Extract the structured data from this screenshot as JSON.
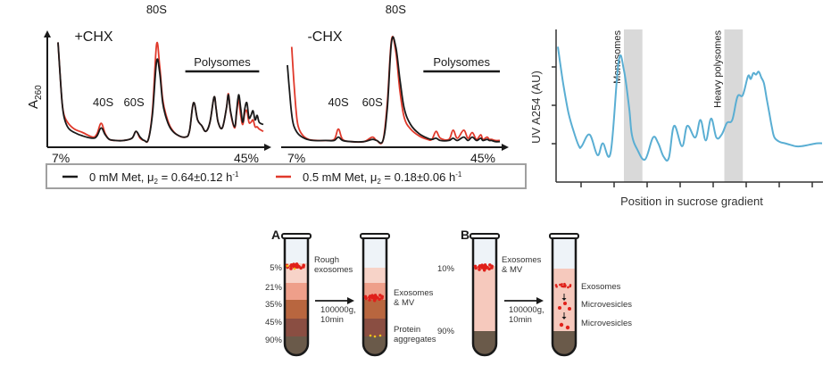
{
  "colors": {
    "black_series": "#1a1a1a",
    "red_series": "#e0392b",
    "blue_series": "#5aaed3",
    "shade": "#d9d9d9",
    "legend_border": "#a0a0a0",
    "tube_outline": "#1a1a1a",
    "layer_5": "#f7d3c8",
    "layer_21": "#ee9f8a",
    "layer_35": "#b8663f",
    "layer_45": "#8a4e42",
    "layer_90": "#6a5a4a",
    "layer_10_to_90": "#f6c9bd",
    "tube_top": "#eef3f8",
    "particle_red": "#e0201a",
    "particle_yellow": "#f3c21b"
  },
  "chart_data": [
    {
      "type": "line",
      "title": "+CHX",
      "ylabel": "A260",
      "ylabel_main": "A",
      "ylabel_sub": "260",
      "xlabel_left": "7%",
      "xlabel_right": "45%",
      "annotations": [
        {
          "text": "40S",
          "x": 0.22
        },
        {
          "text": "60S",
          "x": 0.37
        },
        {
          "text": "80S",
          "x": 0.48
        },
        {
          "text": "Polysomes",
          "x_start": 0.62,
          "x_end": 0.98
        }
      ],
      "ylim": [
        0,
        1
      ],
      "xlim": [
        0,
        1
      ],
      "series": [
        {
          "name": "0 mM Met",
          "color_key": "black_series",
          "x": [
            0.0,
            0.01,
            0.02,
            0.03,
            0.05,
            0.08,
            0.12,
            0.17,
            0.19,
            0.21,
            0.23,
            0.25,
            0.28,
            0.32,
            0.36,
            0.38,
            0.4,
            0.42,
            0.44,
            0.46,
            0.48,
            0.495,
            0.51,
            0.53,
            0.55,
            0.58,
            0.62,
            0.64,
            0.66,
            0.68,
            0.7,
            0.72,
            0.74,
            0.76,
            0.77,
            0.78,
            0.8,
            0.82,
            0.83,
            0.84,
            0.86,
            0.87,
            0.88,
            0.89,
            0.9,
            0.91,
            0.92,
            0.93,
            0.94,
            0.95,
            0.96,
            0.97,
            0.98,
            1.0
          ],
          "y": [
            0.88,
            0.6,
            0.35,
            0.22,
            0.13,
            0.09,
            0.06,
            0.04,
            0.06,
            0.13,
            0.07,
            0.03,
            0.02,
            0.02,
            0.04,
            0.1,
            0.05,
            0.02,
            0.03,
            0.25,
            0.71,
            0.62,
            0.35,
            0.2,
            0.12,
            0.07,
            0.05,
            0.1,
            0.35,
            0.2,
            0.15,
            0.1,
            0.18,
            0.4,
            0.3,
            0.18,
            0.13,
            0.3,
            0.42,
            0.28,
            0.14,
            0.28,
            0.42,
            0.3,
            0.18,
            0.3,
            0.35,
            0.22,
            0.24,
            0.28,
            0.2,
            0.24,
            0.18,
            0.16
          ]
        },
        {
          "name": "0.5 mM Met",
          "color_key": "red_series",
          "x": [
            0.0,
            0.01,
            0.02,
            0.03,
            0.05,
            0.08,
            0.12,
            0.17,
            0.19,
            0.21,
            0.23,
            0.25,
            0.28,
            0.32,
            0.36,
            0.38,
            0.4,
            0.42,
            0.44,
            0.46,
            0.48,
            0.495,
            0.51,
            0.53,
            0.55,
            0.58,
            0.62,
            0.64,
            0.66,
            0.68,
            0.7,
            0.72,
            0.74,
            0.76,
            0.77,
            0.78,
            0.8,
            0.82,
            0.83,
            0.84,
            0.86,
            0.87,
            0.88,
            0.89,
            0.9,
            0.91,
            0.92,
            0.93,
            0.94,
            0.95,
            0.96,
            0.97,
            0.98,
            1.0
          ],
          "y": [
            0.88,
            0.6,
            0.35,
            0.24,
            0.17,
            0.12,
            0.09,
            0.05,
            0.08,
            0.17,
            0.08,
            0.03,
            0.02,
            0.02,
            0.04,
            0.1,
            0.04,
            0.02,
            0.03,
            0.28,
            0.86,
            0.68,
            0.38,
            0.22,
            0.13,
            0.07,
            0.05,
            0.1,
            0.35,
            0.2,
            0.15,
            0.1,
            0.18,
            0.4,
            0.3,
            0.18,
            0.13,
            0.3,
            0.43,
            0.27,
            0.13,
            0.26,
            0.38,
            0.24,
            0.16,
            0.26,
            0.28,
            0.18,
            0.18,
            0.2,
            0.14,
            0.14,
            0.12,
            0.1
          ]
        }
      ]
    },
    {
      "type": "line",
      "title": "-CHX",
      "xlabel_left": "7%",
      "xlabel_right": "45%",
      "annotations": [
        {
          "text": "40S",
          "x": 0.24
        },
        {
          "text": "60S",
          "x": 0.4
        },
        {
          "text": "80S",
          "x": 0.51
        },
        {
          "text": "Polysomes",
          "x_start": 0.64,
          "x_end": 1.0
        }
      ],
      "ylim": [
        0,
        1
      ],
      "xlim": [
        0,
        1
      ],
      "series": [
        {
          "name": "0 mM Met",
          "color_key": "black_series",
          "x": [
            0.0,
            0.01,
            0.02,
            0.03,
            0.05,
            0.08,
            0.12,
            0.18,
            0.22,
            0.24,
            0.26,
            0.3,
            0.36,
            0.4,
            0.42,
            0.45,
            0.47,
            0.49,
            0.51,
            0.53,
            0.55,
            0.58,
            0.62,
            0.66,
            0.68,
            0.7,
            0.72,
            0.76,
            0.78,
            0.8,
            0.83,
            0.85,
            0.87,
            0.89,
            0.91,
            0.92,
            0.94,
            0.95,
            0.96,
            0.98,
            1.0
          ],
          "y": [
            0.68,
            0.45,
            0.25,
            0.15,
            0.08,
            0.04,
            0.02,
            0.02,
            0.02,
            0.05,
            0.02,
            0.01,
            0.01,
            0.03,
            0.02,
            0.02,
            0.3,
            0.88,
            0.84,
            0.55,
            0.3,
            0.16,
            0.08,
            0.04,
            0.03,
            0.04,
            0.02,
            0.02,
            0.04,
            0.02,
            0.05,
            0.02,
            0.05,
            0.02,
            0.04,
            0.02,
            0.03,
            0.02,
            0.02,
            0.01,
            0.01
          ]
        },
        {
          "name": "0.5 mM Met",
          "color_key": "red_series",
          "x": [
            0.02,
            0.03,
            0.04,
            0.05,
            0.07,
            0.1,
            0.14,
            0.18,
            0.22,
            0.24,
            0.26,
            0.3,
            0.36,
            0.4,
            0.42,
            0.45,
            0.47,
            0.49,
            0.51,
            0.53,
            0.55,
            0.58,
            0.62,
            0.66,
            0.68,
            0.7,
            0.72,
            0.76,
            0.78,
            0.8,
            0.83,
            0.85,
            0.87,
            0.89,
            0.91,
            0.92,
            0.94,
            0.95,
            0.96,
            0.98,
            1.0
          ],
          "y": [
            0.84,
            0.55,
            0.3,
            0.15,
            0.07,
            0.03,
            0.02,
            0.02,
            0.03,
            0.12,
            0.03,
            0.01,
            0.01,
            0.05,
            0.02,
            0.02,
            0.35,
            0.9,
            0.8,
            0.45,
            0.22,
            0.12,
            0.06,
            0.03,
            0.03,
            0.1,
            0.04,
            0.03,
            0.11,
            0.04,
            0.11,
            0.04,
            0.09,
            0.03,
            0.07,
            0.03,
            0.05,
            0.03,
            0.03,
            0.02,
            0.02
          ]
        }
      ]
    },
    {
      "type": "line",
      "xlabel": "Position in sucrose gradient",
      "ylabel": "UV A254 (AU)",
      "shaded_regions": [
        {
          "label": "Monosomes",
          "x_start": 0.25,
          "x_end": 0.32
        },
        {
          "label": "Heavy polysomes",
          "x_start": 0.63,
          "x_end": 0.7
        }
      ],
      "xlim": [
        0,
        1
      ],
      "ylim": [
        0,
        1
      ],
      "x_tick_count": 8,
      "y_tick_count": 3,
      "series": [
        {
          "name": "UV A254",
          "color_key": "blue_series",
          "x": [
            0.0,
            0.02,
            0.04,
            0.06,
            0.08,
            0.09,
            0.12,
            0.15,
            0.17,
            0.2,
            0.23,
            0.25,
            0.27,
            0.28,
            0.3,
            0.33,
            0.36,
            0.38,
            0.4,
            0.42,
            0.44,
            0.47,
            0.49,
            0.52,
            0.54,
            0.56,
            0.58,
            0.6,
            0.62,
            0.64,
            0.66,
            0.68,
            0.7,
            0.72,
            0.73,
            0.74,
            0.75,
            0.76,
            0.77,
            0.78,
            0.79,
            0.8,
            0.81,
            0.82,
            0.84,
            0.86,
            0.88,
            0.9,
            0.92,
            0.95,
            0.98,
            1.0
          ],
          "y": [
            0.9,
            0.65,
            0.45,
            0.32,
            0.22,
            0.22,
            0.3,
            0.16,
            0.24,
            0.18,
            0.8,
            0.74,
            0.48,
            0.3,
            0.2,
            0.13,
            0.28,
            0.24,
            0.15,
            0.14,
            0.36,
            0.22,
            0.36,
            0.28,
            0.4,
            0.26,
            0.41,
            0.28,
            0.3,
            0.38,
            0.4,
            0.56,
            0.57,
            0.7,
            0.68,
            0.72,
            0.71,
            0.73,
            0.69,
            0.65,
            0.55,
            0.45,
            0.35,
            0.28,
            0.25,
            0.24,
            0.23,
            0.22,
            0.22,
            0.23,
            0.24,
            0.24
          ]
        }
      ]
    }
  ],
  "legend": {
    "items": [
      {
        "label_prefix": "0 mM Met, μ",
        "sub": "2",
        "label_suffix": " = 0.64±0.12 h",
        "sup": "-1",
        "color_key": "black_series"
      },
      {
        "label_prefix": "0.5 mM Met, μ",
        "sub": "2",
        "label_suffix": " = 0.18±0.06 h",
        "sup": "-1",
        "color_key": "red_series"
      }
    ]
  },
  "diagram": {
    "panel_a": {
      "label": "A",
      "layers": [
        "5%",
        "21%",
        "35%",
        "45%",
        "90%"
      ],
      "before_label_line1": "Rough",
      "before_label_line2": "exosomes",
      "arrow_line1": "100000g,",
      "arrow_line2": "10min",
      "after_label1_line1": "Exosomes",
      "after_label1_line2": "& MV",
      "after_label2_line1": "Protein",
      "after_label2_line2": "aggregates"
    },
    "panel_b": {
      "label": "B",
      "layers": [
        "10%",
        "90%"
      ],
      "before_label_line1": "Exosomes",
      "before_label_line2": "& MV",
      "arrow_line1": "100000g,",
      "arrow_line2": "10min",
      "after_labels": [
        "Exosomes",
        "Microvesicles",
        "Microvesicles"
      ]
    }
  }
}
